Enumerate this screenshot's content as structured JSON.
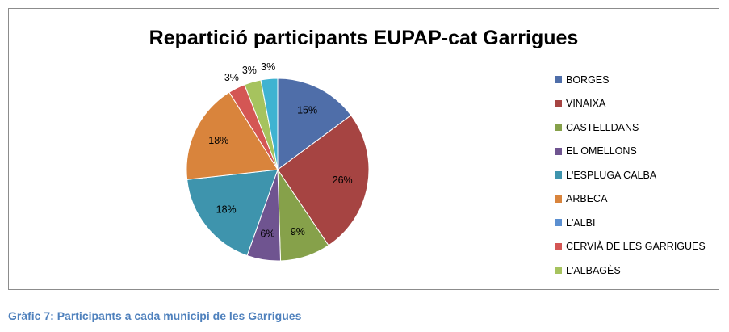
{
  "chart_data": {
    "type": "pie",
    "title": "Repartició participants EUPAP-cat Garrigues",
    "legend_position": "right",
    "slices": [
      {
        "label": "BORGES",
        "value": 15,
        "display": "15%",
        "color": "#4f6ea9"
      },
      {
        "label": "VINAIXA",
        "value": 26,
        "display": "26%",
        "color": "#a64442"
      },
      {
        "label": "CASTELLDANS",
        "value": 9,
        "display": "9%",
        "color": "#86a14a"
      },
      {
        "label": "EL OMELLONS",
        "value": 6,
        "display": "6%",
        "color": "#6f5490"
      },
      {
        "label": "L'ESPLUGA CALBA",
        "value": 18,
        "display": "18%",
        "color": "#3e94ad"
      },
      {
        "label": "ARBECA",
        "value": 18,
        "display": "18%",
        "color": "#d9843c"
      },
      {
        "label": "L'ALBI",
        "value": 0,
        "display": "",
        "color": "#5b8fd0"
      },
      {
        "label": "CERVIÀ DE LES GARRIGUES",
        "value": 3,
        "display": "3%",
        "color": "#d45654"
      },
      {
        "label": "L'ALBAGÈS",
        "value": 3,
        "display": "3%",
        "color": "#a6c35e"
      },
      {
        "label": "",
        "value": 3,
        "display": "3%",
        "color": "#3fb3d1"
      }
    ]
  },
  "caption": "Gràfic 7: Participants a cada municipi de les Garrigues"
}
